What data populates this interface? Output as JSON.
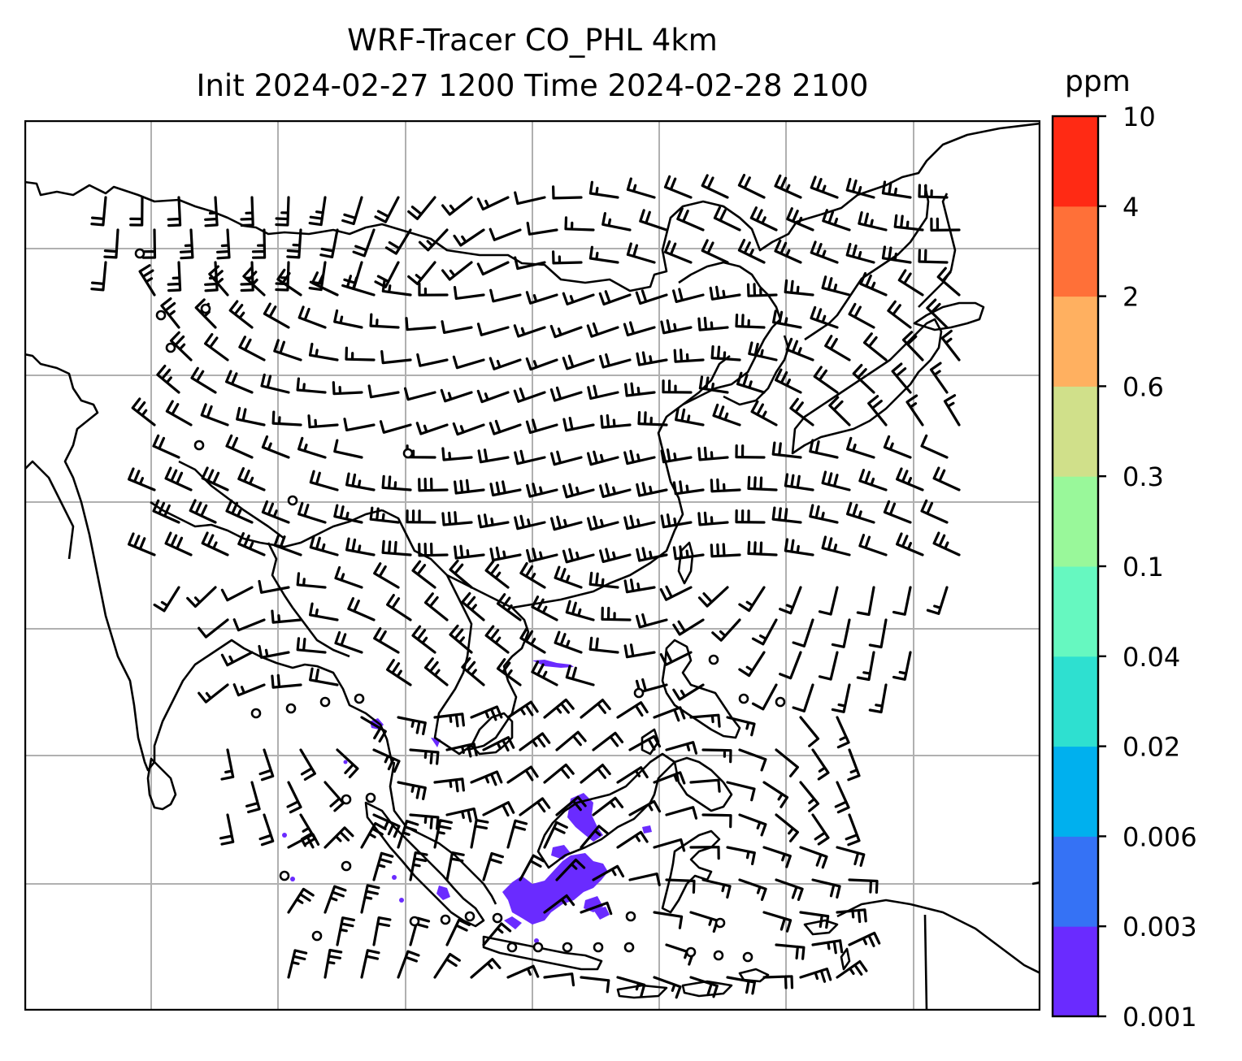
{
  "title_line1": "WRF-Tracer CO_PHL 4km",
  "title_line2": "Init 2024-02-27 1200 Time 2024-02-28 2100",
  "colorbar": {
    "units": "ppm",
    "ticks": [
      "0.001",
      "0.003",
      "0.006",
      "0.02",
      "0.04",
      "0.1",
      "0.3",
      "0.6",
      "2",
      "4",
      "10"
    ],
    "colors": [
      "#6a2bff",
      "#3572f5",
      "#00b0ee",
      "#2ee0d0",
      "#66f8c0",
      "#99f89a",
      "#d0e08a",
      "#ffb060",
      "#ff7038",
      "#ff2a14"
    ]
  },
  "map": {
    "tracer_color": "#6a2bff",
    "grid_color": "#b0b0b0",
    "coast_color": "#000000",
    "barb_color": "#000000"
  }
}
